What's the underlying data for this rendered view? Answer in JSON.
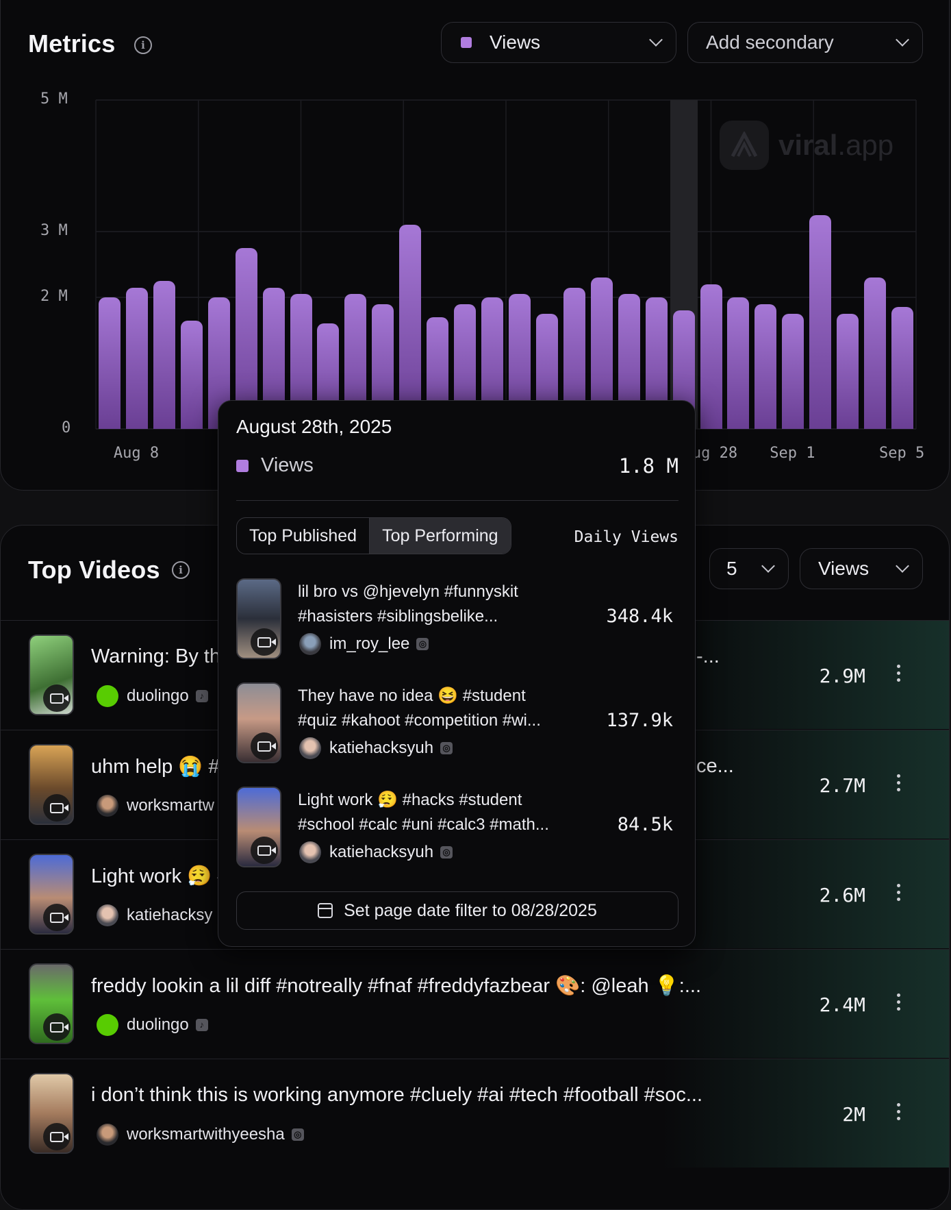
{
  "metrics": {
    "title": "Metrics",
    "primary_metric": "Views",
    "secondary_placeholder": "Add secondary",
    "accent_color": "#b07ddf",
    "watermark": {
      "brand": "viral",
      "tld": ".app"
    }
  },
  "chart_data": {
    "type": "bar",
    "series": [
      {
        "name": "Views",
        "values": [
          2.0,
          2.15,
          2.25,
          1.65,
          2.0,
          2.75,
          2.15,
          2.05,
          1.6,
          2.05,
          1.9,
          3.1,
          1.7,
          1.9,
          2.0,
          2.05,
          1.75,
          2.15,
          2.3,
          2.05,
          2.0,
          1.8,
          2.2,
          2.0,
          1.9,
          1.75,
          3.25,
          1.75,
          2.3,
          1.85
        ]
      }
    ],
    "x_tick_labels": [
      "Aug 8",
      "Aug 28",
      "Sep 1",
      "Sep 5"
    ],
    "y_tick_labels": [
      "5 M",
      "3 M",
      "2 M",
      "0"
    ],
    "ylabel": "",
    "xlabel": "",
    "ylim": [
      0,
      5
    ],
    "y_unit": "M",
    "grid": true,
    "highlighted_index": 21
  },
  "tooltip": {
    "date": "August 28th, 2025",
    "metric_label": "Views",
    "metric_value": "1.8 M",
    "tabs": [
      "Top Published",
      "Top Performing"
    ],
    "active_tab": "Top Performing",
    "column_label": "Daily Views",
    "items": [
      {
        "title_line1": "lil bro vs @hjevelyn #funnyskit",
        "title_line2": "#hasisters #siblingsbelike...",
        "author": "im_roy_lee",
        "platform": "instagram",
        "value": "348.4k"
      },
      {
        "title_line1": "They have no idea 😆 #student",
        "title_line2": "#quiz #kahoot #competition #wi...",
        "author": "katiehacksyuh",
        "platform": "instagram",
        "value": "137.9k"
      },
      {
        "title_line1": "Light work 😮‍💨 #hacks #student",
        "title_line2": "#school #calc #uni #calc3 #math...",
        "author": "katiehacksyuh",
        "platform": "instagram",
        "value": "84.5k"
      }
    ],
    "filter_button": "Set page date filter to 08/28/2025"
  },
  "top_videos": {
    "title": "Top Videos",
    "count": "5",
    "sort_metric": "Views",
    "rows": [
      {
        "title_left": "Warning: By th",
        "title_right": "-...",
        "author": "duolingo",
        "platform": "tiktok",
        "value": "2.9M"
      },
      {
        "title_left": "uhm help 😭 #",
        "title_right": "ce...",
        "author": "worksmartw",
        "platform": "instagram",
        "value": "2.7M"
      },
      {
        "title_left": "Light work 😮‍💨 #",
        "title_right": "",
        "author": "katiehacksy",
        "platform": "instagram",
        "value": "2.6M"
      },
      {
        "title_left": "freddy lookin a lil diff #notreally #fnaf #freddyfazbear 🎨: @leah 💡:...",
        "title_right": "",
        "author": "duolingo",
        "platform": "tiktok",
        "value": "2.4M"
      },
      {
        "title_left": "i don’t think this is working anymore #cluely #ai #tech #football #soc...",
        "title_right": "",
        "author": "worksmartwithyeesha",
        "platform": "instagram",
        "value": "2M"
      }
    ]
  }
}
